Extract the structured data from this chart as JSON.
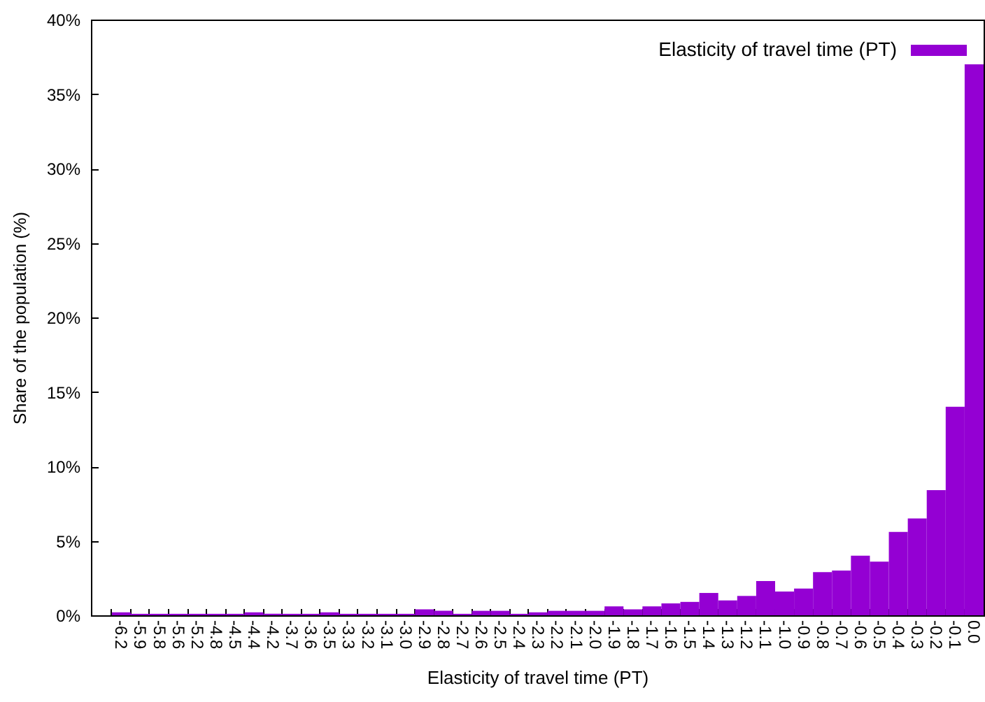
{
  "chart_data": {
    "type": "bar",
    "xlabel": "Elasticity of travel time (PT)",
    "ylabel": "Share of the population (%)",
    "categories": [
      "-6.2",
      "-5.9",
      "-5.8",
      "-5.6",
      "-5.2",
      "-4.8",
      "-4.5",
      "-4.4",
      "-4.2",
      "-3.7",
      "-3.6",
      "-3.5",
      "-3.3",
      "-3.2",
      "-3.1",
      "-3.0",
      "-2.9",
      "-2.8",
      "-2.7",
      "-2.6",
      "-2.5",
      "-2.4",
      "-2.3",
      "-2.2",
      "-2.1",
      "-2.0",
      "-1.9",
      "-1.8",
      "-1.7",
      "-1.6",
      "-1.5",
      "-1.4",
      "-1.3",
      "-1.2",
      "-1.1",
      "-1.0",
      "-0.9",
      "-0.8",
      "-0.7",
      "-0.6",
      "-0.5",
      "-0.4",
      "-0.3",
      "-0.2",
      "-0.1",
      "0.0"
    ],
    "series": [
      {
        "name": "Elasticity of travel time (PT)",
        "color": "#9400d3",
        "values": [
          0.2,
          0.1,
          0.1,
          0.1,
          0.1,
          0.1,
          0.1,
          0.2,
          0.1,
          0.1,
          0.1,
          0.2,
          0.1,
          0.1,
          0.1,
          0.1,
          0.4,
          0.3,
          0.1,
          0.3,
          0.3,
          0.1,
          0.2,
          0.3,
          0.3,
          0.3,
          0.6,
          0.4,
          0.6,
          0.8,
          0.9,
          1.5,
          1.0,
          1.3,
          2.3,
          1.6,
          1.8,
          2.9,
          3.0,
          4.0,
          3.6,
          5.6,
          6.5,
          8.4,
          14.0,
          37.0
        ]
      }
    ],
    "ylim": [
      0,
      40
    ],
    "yticks": [
      {
        "value": 0,
        "label": "0%"
      },
      {
        "value": 5,
        "label": "5%"
      },
      {
        "value": 10,
        "label": "10%"
      },
      {
        "value": 15,
        "label": "15%"
      },
      {
        "value": 20,
        "label": "20%"
      },
      {
        "value": 25,
        "label": "25%"
      },
      {
        "value": 30,
        "label": "30%"
      },
      {
        "value": 35,
        "label": "35%"
      },
      {
        "value": 40,
        "label": "40%"
      }
    ],
    "legend": "top right"
  }
}
